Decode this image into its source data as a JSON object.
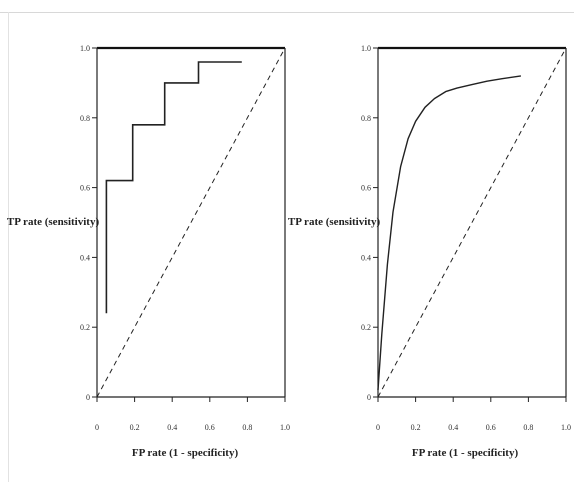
{
  "chart_data": [
    {
      "type": "line",
      "title": "",
      "xlabel": "FP rate (1 - specificity)",
      "ylabel": "TP rate (sensitivity)",
      "xlim": [
        0,
        1.0
      ],
      "ylim": [
        0,
        1.0
      ],
      "xticks": [
        "0",
        "0.2",
        "0.4",
        "0.6",
        "0.8",
        "1.0"
      ],
      "yticks": [
        "0",
        "0.2",
        "0.4",
        "0.6",
        "0.8",
        "1.0"
      ],
      "grid": false,
      "series": [
        {
          "style": "step-solid",
          "x": [
            0.05,
            0.05,
            0.19,
            0.19,
            0.36,
            0.36,
            0.54,
            0.54,
            0.77
          ],
          "y": [
            0.24,
            0.62,
            0.62,
            0.78,
            0.78,
            0.9,
            0.9,
            0.96,
            0.96
          ]
        },
        {
          "style": "dashed",
          "x": [
            0.0,
            1.0
          ],
          "y": [
            0.0,
            1.0
          ]
        }
      ]
    },
    {
      "type": "line",
      "title": "",
      "xlabel": "FP rate (1 - specificity)",
      "ylabel": "TP rate (sensitivity)",
      "xlim": [
        0,
        1.0
      ],
      "ylim": [
        0,
        1.0
      ],
      "xticks": [
        "0",
        "0.2",
        "0.4",
        "0.6",
        "0.8",
        "1.0"
      ],
      "yticks": [
        "0",
        "0.2",
        "0.4",
        "0.6",
        "0.8",
        "1.0"
      ],
      "grid": false,
      "series": [
        {
          "style": "smooth-solid",
          "x": [
            0.0,
            0.02,
            0.05,
            0.08,
            0.12,
            0.16,
            0.2,
            0.25,
            0.3,
            0.36,
            0.42,
            0.5,
            0.58,
            0.66,
            0.76
          ],
          "y": [
            0.02,
            0.18,
            0.38,
            0.53,
            0.66,
            0.74,
            0.79,
            0.83,
            0.855,
            0.875,
            0.885,
            0.895,
            0.905,
            0.912,
            0.92
          ]
        },
        {
          "style": "dashed",
          "x": [
            0.0,
            1.0
          ],
          "y": [
            0.0,
            1.0
          ]
        }
      ]
    }
  ]
}
